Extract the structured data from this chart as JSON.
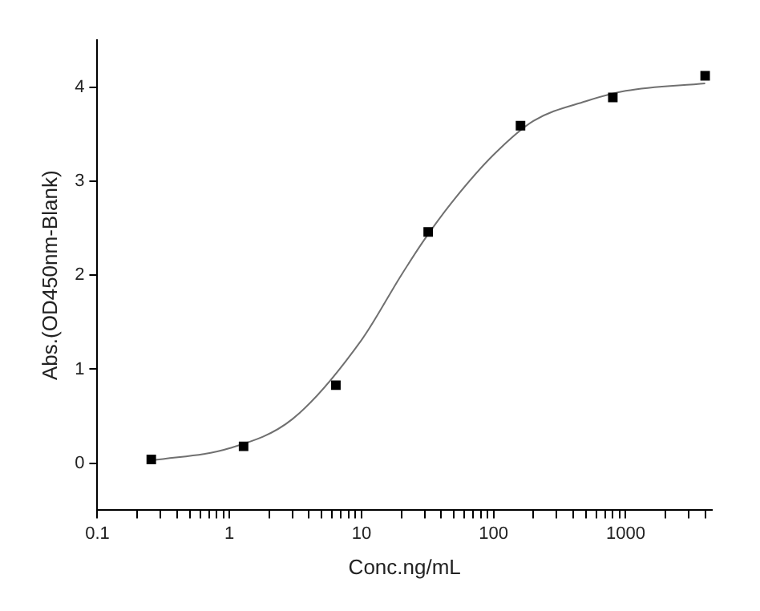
{
  "chart_data": {
    "type": "scatter",
    "xlabel": "Conc.ng/mL",
    "ylabel": "Abs.(OD450nm-Blank)",
    "log": "x",
    "grid": false,
    "legend": false,
    "marker": "square",
    "xlim": [
      0.1,
      4500
    ],
    "ylim": [
      -0.5,
      4.5
    ],
    "xticks": [
      {
        "value": 0.1,
        "label": "0.1"
      },
      {
        "value": 0.2,
        "label": null
      },
      {
        "value": 0.3,
        "label": null
      },
      {
        "value": 0.4,
        "label": null
      },
      {
        "value": 0.5,
        "label": null
      },
      {
        "value": 0.6,
        "label": null
      },
      {
        "value": 0.7,
        "label": null
      },
      {
        "value": 0.8,
        "label": null
      },
      {
        "value": 0.9,
        "label": null
      },
      1,
      {
        "value": 2,
        "label": null
      },
      {
        "value": 3,
        "label": null
      },
      {
        "value": 4,
        "label": null
      },
      {
        "value": 5,
        "label": null
      },
      {
        "value": 6,
        "label": null
      },
      {
        "value": 7,
        "label": null
      },
      {
        "value": 8,
        "label": null
      },
      {
        "value": 9,
        "label": null
      },
      10,
      {
        "value": 20,
        "label": null
      },
      {
        "value": 30,
        "label": null
      },
      {
        "value": 40,
        "label": null
      },
      {
        "value": 50,
        "label": null
      },
      {
        "value": 60,
        "label": null
      },
      {
        "value": 70,
        "label": null
      },
      {
        "value": 80,
        "label": null
      },
      {
        "value": 90,
        "label": null
      },
      100,
      {
        "value": 200,
        "label": null
      },
      {
        "value": 300,
        "label": null
      },
      {
        "value": 400,
        "label": null
      },
      {
        "value": 500,
        "label": null
      },
      {
        "value": 600,
        "label": null
      },
      {
        "value": 700,
        "label": null
      },
      {
        "value": 800,
        "label": null
      },
      {
        "value": 900,
        "label": null
      },
      1000,
      {
        "value": 2000,
        "label": null
      },
      {
        "value": 3000,
        "label": null
      },
      {
        "value": 4000,
        "label": null
      }
    ],
    "yticks": [
      0,
      1,
      2,
      3,
      4
    ],
    "series": [
      {
        "color": "#000000",
        "x": [
          0.256,
          1.28,
          6.4,
          32,
          160,
          800,
          4000
        ],
        "values": [
          0.04,
          0.18,
          0.83,
          2.46,
          3.59,
          3.89,
          4.12
        ]
      },
      {
        "type": "line",
        "color": "#707070",
        "marker": "none",
        "x": [
          0.26,
          1,
          3,
          10,
          20,
          30,
          50,
          100,
          200,
          500,
          1000,
          4000
        ],
        "values": [
          0.03,
          0.16,
          0.47,
          1.31,
          2.0,
          2.38,
          2.8,
          3.28,
          3.64,
          3.85,
          3.96,
          4.04
        ]
      }
    ]
  }
}
